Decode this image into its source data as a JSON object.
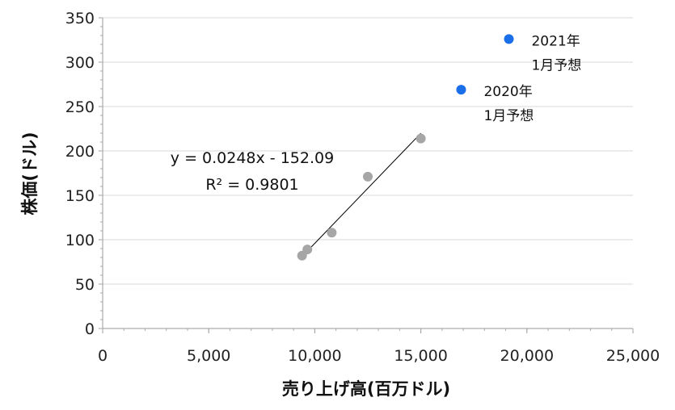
{
  "chart_data": {
    "type": "scatter",
    "xlabel": "売り上げ高(百万ドル)",
    "ylabel": "株価(ドル)",
    "xlim": [
      0,
      25000
    ],
    "ylim": [
      0,
      350
    ],
    "x_ticks": [
      "0",
      "5,000",
      "10,000",
      "15,000",
      "20,000",
      "25,000"
    ],
    "y_ticks": [
      "0",
      "50",
      "100",
      "150",
      "200",
      "250",
      "300",
      "350"
    ],
    "grid": "horizontal",
    "series": [
      {
        "color": "#a6a6a6",
        "points": [
          {
            "x": 9400,
            "y": 82
          },
          {
            "x": 9650,
            "y": 89
          },
          {
            "x": 10800,
            "y": 108
          },
          {
            "x": 12500,
            "y": 171
          },
          {
            "x": 15000,
            "y": 214
          }
        ]
      },
      {
        "color": "#1a6ee8",
        "points": [
          {
            "x": 16900,
            "y": 269,
            "label_line1": "2020年",
            "label_line2": "1月予想"
          },
          {
            "x": 19150,
            "y": 326,
            "label_line1": "2021年",
            "label_line2": "1月予想"
          }
        ]
      }
    ],
    "trendline": {
      "x_start": 9400,
      "x_end": 15000,
      "equation": "y = 0.0248x - 152.09",
      "r_squared": "R² = 0.9801",
      "color": "#000000"
    }
  }
}
